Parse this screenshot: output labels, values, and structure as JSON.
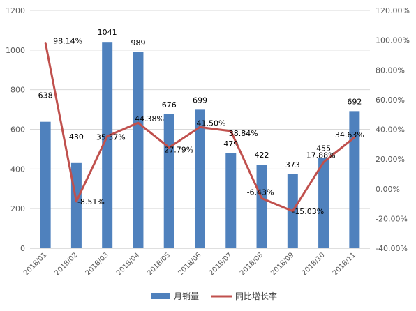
{
  "chart_data": {
    "type": "bar+line",
    "categories": [
      "2018/01",
      "2018/02",
      "2018/03",
      "2018/04",
      "2018/05",
      "2018/06",
      "2018/07",
      "2018/08",
      "2018/09",
      "2018/10",
      "2018/11"
    ],
    "series": [
      {
        "name": "月销量",
        "type": "bar",
        "axis": "left",
        "color": "#4f81bd",
        "values": [
          638,
          430,
          1041,
          989,
          676,
          699,
          479,
          422,
          373,
          455,
          692
        ],
        "labels": [
          "638",
          "430",
          "1041",
          "989",
          "676",
          "699",
          "479",
          "422",
          "373",
          "455",
          "692"
        ]
      },
      {
        "name": "同比增长率",
        "type": "line",
        "axis": "right",
        "color": "#c0504d",
        "values": [
          98.14,
          -8.51,
          35.37,
          44.38,
          27.79,
          41.5,
          38.84,
          -6.43,
          -15.03,
          17.88,
          34.63
        ],
        "labels": [
          "98.14%",
          "-8.51%",
          "35.37%",
          "44.38%",
          "27.79%",
          "41.50%",
          "38.84%",
          "-6.43%",
          "-15.03%",
          "17.88%",
          "34.63%"
        ]
      }
    ],
    "y_left": {
      "min": 0,
      "max": 1200,
      "ticks": [
        "0",
        "200",
        "400",
        "600",
        "800",
        "1000",
        "1200"
      ]
    },
    "y_right": {
      "min": -40,
      "max": 120,
      "ticks": [
        "-40.00%",
        "-20.00%",
        "0.00%",
        "20.00%",
        "40.00%",
        "60.00%",
        "80.00%",
        "100.00%",
        "120.00%"
      ]
    },
    "grid": true,
    "legend": "bottom"
  }
}
